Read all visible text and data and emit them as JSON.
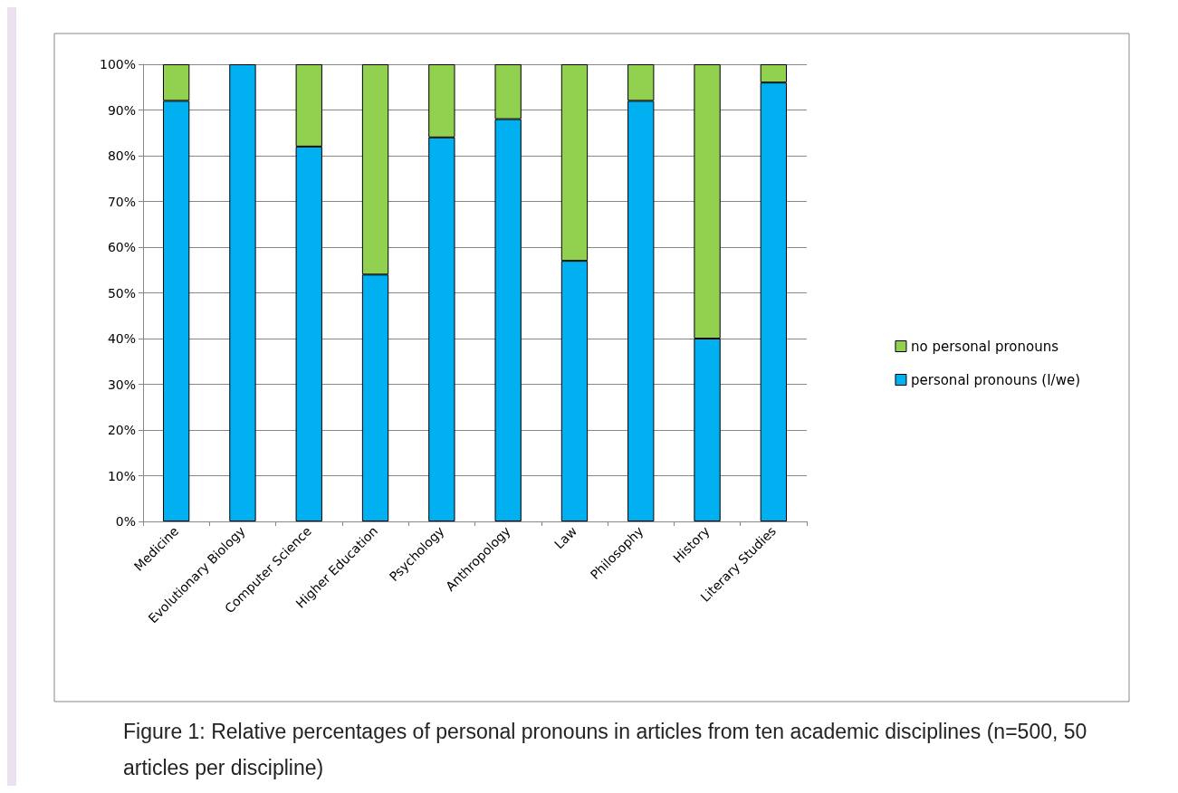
{
  "chart_data": {
    "type": "bar",
    "stacked": true,
    "categories": [
      "Medicine",
      "Evolutionary Biology",
      "Computer Science",
      "Higher Education",
      "Psychology",
      "Anthropology",
      "Law",
      "Philosophy",
      "History",
      "Literary Studies"
    ],
    "series": [
      {
        "name": "personal pronouns (I/we)",
        "color": "#00b0f0",
        "values": [
          92,
          100,
          82,
          54,
          84,
          88,
          57,
          92,
          40,
          96
        ]
      },
      {
        "name": "no personal pronouns",
        "color": "#92d050",
        "values": [
          8,
          0,
          18,
          46,
          16,
          12,
          43,
          8,
          60,
          4
        ]
      }
    ],
    "ylim": [
      0,
      100
    ],
    "yticks": [
      {
        "value": 0,
        "label": "0%"
      },
      {
        "value": 10,
        "label": "10%"
      },
      {
        "value": 20,
        "label": "20%"
      },
      {
        "value": 30,
        "label": "30%"
      },
      {
        "value": 40,
        "label": "40%"
      },
      {
        "value": 50,
        "label": "50%"
      },
      {
        "value": 60,
        "label": "60%"
      },
      {
        "value": 70,
        "label": "70%"
      },
      {
        "value": 80,
        "label": "80%"
      },
      {
        "value": 90,
        "label": "90%"
      },
      {
        "value": 100,
        "label": "100%"
      }
    ],
    "grid": "y",
    "legend": "right",
    "annotations": [
      "Figure 1: Relative percentages of personal pronouns in articles from ten academic disciplines (n=500, 50 articles per discipline)"
    ]
  }
}
